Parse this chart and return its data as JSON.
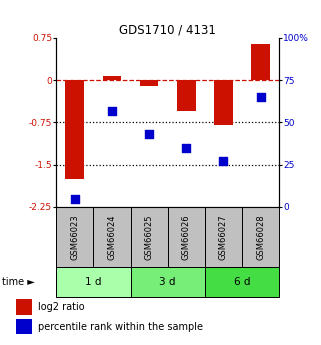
{
  "title": "GDS1710 / 4131",
  "samples": [
    "GSM66023",
    "GSM66024",
    "GSM66025",
    "GSM66026",
    "GSM66027",
    "GSM66028"
  ],
  "log2_ratio": [
    -1.75,
    0.08,
    -0.1,
    -0.55,
    -0.8,
    0.65
  ],
  "percentile_rank": [
    5,
    57,
    43,
    35,
    27,
    65
  ],
  "bar_color": "#CC1100",
  "dot_color": "#0000CC",
  "ylim_left": [
    -2.25,
    0.75
  ],
  "ylim_right": [
    0,
    100
  ],
  "yticks_left": [
    0.75,
    0,
    -0.75,
    -1.5,
    -2.25
  ],
  "yticks_right": [
    100,
    75,
    50,
    25,
    0
  ],
  "hlines_dotted": [
    -0.75,
    -1.5
  ],
  "hline_dashed": 0,
  "time_groups": [
    {
      "label": "1 d",
      "start": 0,
      "end": 2
    },
    {
      "label": "3 d",
      "start": 2,
      "end": 4
    },
    {
      "label": "6 d",
      "start": 4,
      "end": 6
    }
  ],
  "time_group_colors": [
    "#AAFFAA",
    "#77EE77",
    "#44DD44"
  ],
  "legend_items": [
    {
      "label": "log2 ratio",
      "color": "#CC1100"
    },
    {
      "label": "percentile rank within the sample",
      "color": "#0000CC"
    }
  ],
  "bar_width": 0.5,
  "dot_size": 40,
  "background_color": "#FFFFFF",
  "plot_bg_color": "#FFFFFF",
  "label_area_color": "#C0C0C0",
  "time_label": "time"
}
